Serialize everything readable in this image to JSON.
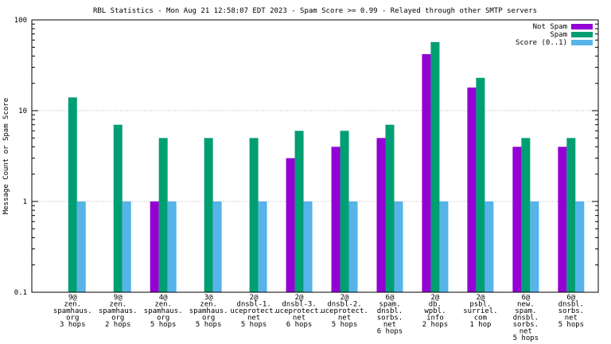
{
  "chart_data": {
    "type": "bar",
    "title": "RBL Statistics - Mon Aug 21 12:58:07 EDT 2023 - Spam Score >= 0.99 - Relayed through other SMTP servers",
    "ylabel": "Message Count or Spam Score",
    "xlabel": "",
    "yscale": "log",
    "ylim": [
      0.1,
      100
    ],
    "yticks": [
      "0.1",
      "1",
      "10",
      "100"
    ],
    "grid": true,
    "legend_position": "top-right",
    "categories": [
      [
        "9@",
        "zen.",
        "spamhaus.",
        "org",
        "3 hops"
      ],
      [
        "9@",
        "zen.",
        "spamhaus.",
        "org",
        "2 hops"
      ],
      [
        "4@",
        "zen.",
        "spamhaus.",
        "org",
        "5 hops"
      ],
      [
        "3@",
        "zen.",
        "spamhaus.",
        "org",
        "5 hops"
      ],
      [
        "2@",
        "dnsbl-1.",
        "uceprotect.",
        "net",
        "5 hops"
      ],
      [
        "2@",
        "dnsbl-3.",
        "uceprotect.",
        "net",
        "6 hops"
      ],
      [
        "2@",
        "dnsbl-2.",
        "uceprotect.",
        "net",
        "5 hops"
      ],
      [
        "6@",
        "spam.",
        "dnsbl.",
        "sorbs.",
        "net",
        "6 hops"
      ],
      [
        "2@",
        "db.",
        "wpbl.",
        "info",
        "2 hops"
      ],
      [
        "2@",
        "psbl.",
        "surriel.",
        "com",
        "1 hop"
      ],
      [
        "6@",
        "new.",
        "spam.",
        "dnsbl.",
        "sorbs.",
        "net",
        "5 hops"
      ],
      [
        "6@",
        "dnsbl.",
        "sorbs.",
        "net",
        "5 hops"
      ]
    ],
    "series": [
      {
        "name": "Not Spam",
        "color": "#9400d3",
        "values": [
          0,
          0,
          1,
          0,
          0,
          3,
          4,
          5,
          42,
          18,
          4,
          4
        ]
      },
      {
        "name": "Spam",
        "color": "#009e73",
        "values": [
          14,
          7,
          5,
          5,
          5,
          6,
          6,
          7,
          57,
          23,
          5,
          5
        ]
      },
      {
        "name": "Score (0..1)",
        "color": "#56b4e9",
        "values": [
          1,
          1,
          1,
          1,
          1,
          1,
          1,
          1,
          1,
          1,
          1,
          1
        ]
      }
    ]
  }
}
